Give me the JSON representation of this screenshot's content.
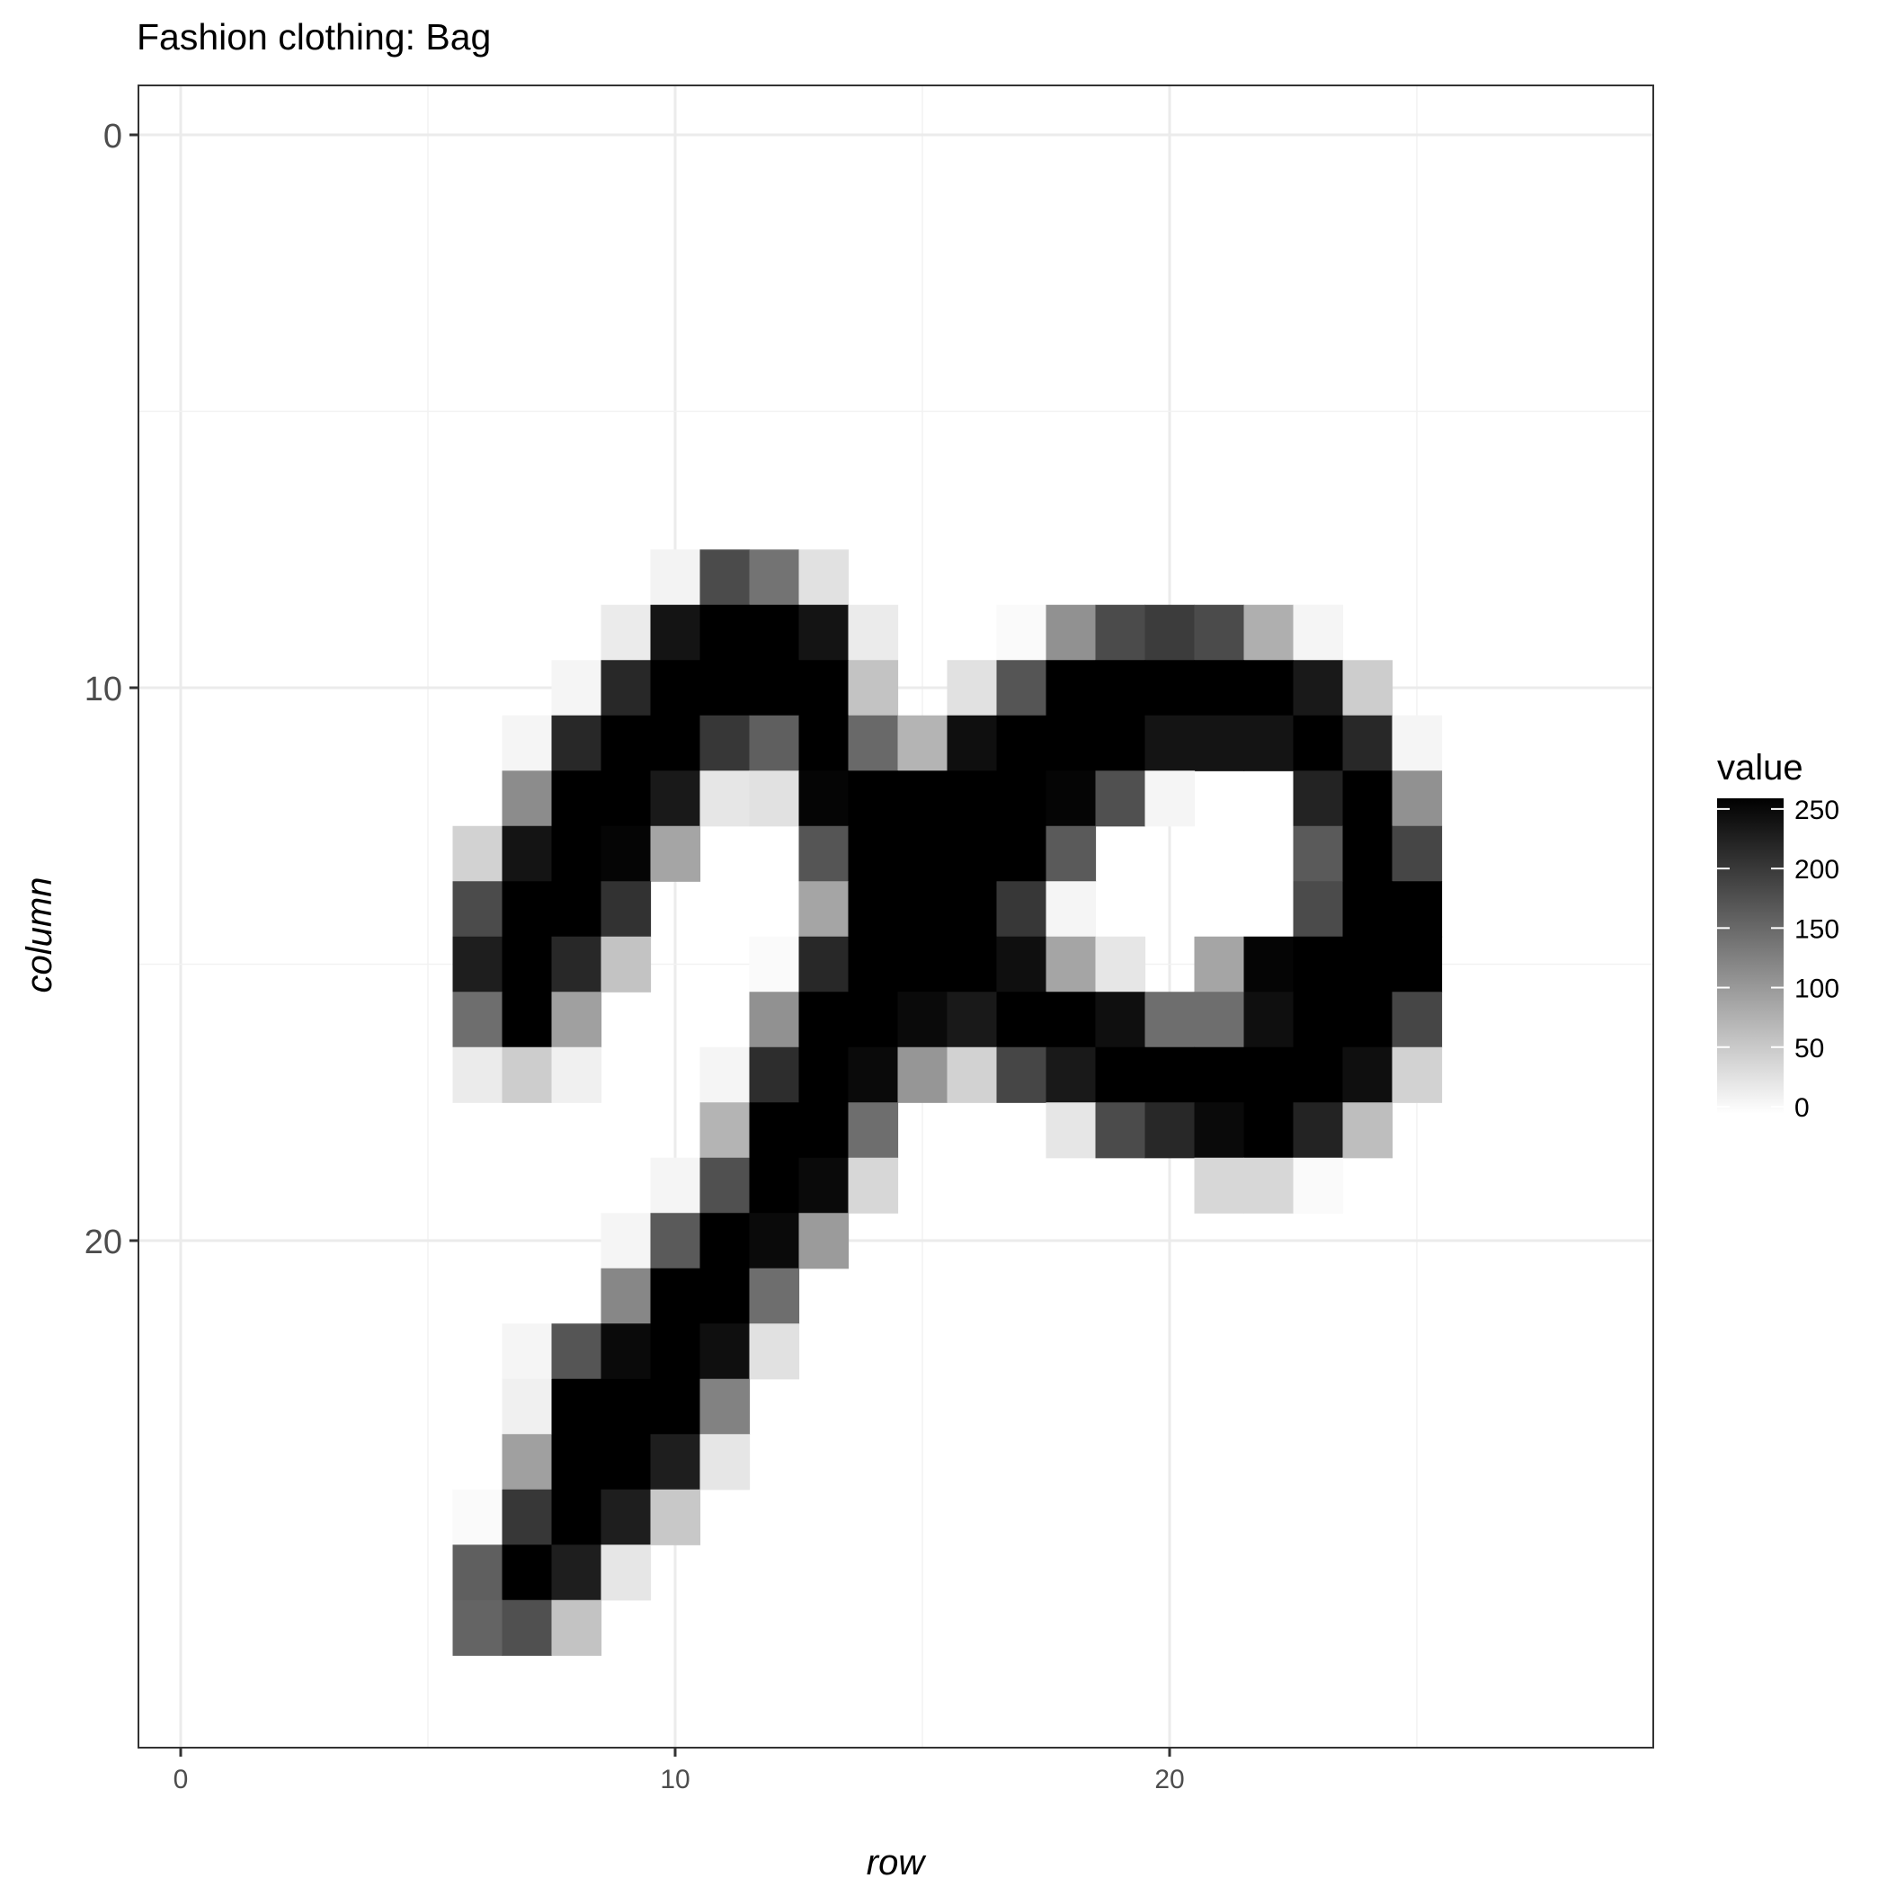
{
  "chart_data": {
    "type": "heatmap",
    "title": "Fashion clothing: Bag",
    "xlabel": "row",
    "ylabel": "column",
    "xlim": [
      -0.9,
      29.9
    ],
    "ylim": [
      0,
      30
    ],
    "x_ticks": [
      0,
      10,
      20
    ],
    "y_ticks": [
      0,
      10,
      20
    ],
    "y_reversed": true,
    "legend": {
      "title": "value",
      "min": 0,
      "max": 255,
      "ticks": [
        0,
        50,
        100,
        150,
        200,
        250
      ],
      "position": "right",
      "low_color": "#ffffff",
      "high_color": "#000000"
    },
    "grid": true,
    "cells": [
      [
        8,
        10,
        12
      ],
      [
        8,
        11,
        180
      ],
      [
        8,
        12,
        140
      ],
      [
        8,
        13,
        30
      ],
      [
        9,
        9,
        20
      ],
      [
        9,
        10,
        235
      ],
      [
        9,
        11,
        255
      ],
      [
        9,
        12,
        255
      ],
      [
        9,
        13,
        235
      ],
      [
        9,
        14,
        20
      ],
      [
        9,
        17,
        5
      ],
      [
        9,
        18,
        110
      ],
      [
        9,
        19,
        180
      ],
      [
        9,
        20,
        195
      ],
      [
        9,
        21,
        180
      ],
      [
        9,
        22,
        80
      ],
      [
        9,
        23,
        10
      ],
      [
        10,
        8,
        10
      ],
      [
        10,
        9,
        215
      ],
      [
        10,
        10,
        255
      ],
      [
        10,
        11,
        255
      ],
      [
        10,
        12,
        255
      ],
      [
        10,
        13,
        255
      ],
      [
        10,
        14,
        60
      ],
      [
        10,
        16,
        30
      ],
      [
        10,
        17,
        170
      ],
      [
        10,
        18,
        255
      ],
      [
        10,
        19,
        255
      ],
      [
        10,
        20,
        255
      ],
      [
        10,
        21,
        255
      ],
      [
        10,
        22,
        255
      ],
      [
        10,
        23,
        230
      ],
      [
        10,
        24,
        50
      ],
      [
        11,
        7,
        10
      ],
      [
        11,
        8,
        215
      ],
      [
        11,
        9,
        255
      ],
      [
        11,
        10,
        255
      ],
      [
        11,
        11,
        200
      ],
      [
        11,
        12,
        160
      ],
      [
        11,
        13,
        255
      ],
      [
        11,
        14,
        150
      ],
      [
        11,
        15,
        75
      ],
      [
        11,
        16,
        240
      ],
      [
        11,
        17,
        255
      ],
      [
        11,
        18,
        255
      ],
      [
        11,
        19,
        255
      ],
      [
        11,
        20,
        235
      ],
      [
        11,
        21,
        235
      ],
      [
        11,
        22,
        235
      ],
      [
        11,
        23,
        255
      ],
      [
        11,
        24,
        215
      ],
      [
        11,
        25,
        10
      ],
      [
        12,
        7,
        115
      ],
      [
        12,
        8,
        255
      ],
      [
        12,
        9,
        255
      ],
      [
        12,
        10,
        230
      ],
      [
        12,
        11,
        25
      ],
      [
        12,
        12,
        30
      ],
      [
        12,
        13,
        250
      ],
      [
        12,
        14,
        255
      ],
      [
        12,
        15,
        255
      ],
      [
        12,
        16,
        255
      ],
      [
        12,
        17,
        255
      ],
      [
        12,
        18,
        250
      ],
      [
        12,
        19,
        175
      ],
      [
        12,
        20,
        10
      ],
      [
        12,
        23,
        220
      ],
      [
        12,
        24,
        255
      ],
      [
        12,
        25,
        110
      ],
      [
        13,
        6,
        45
      ],
      [
        13,
        7,
        235
      ],
      [
        13,
        8,
        255
      ],
      [
        13,
        9,
        250
      ],
      [
        13,
        10,
        90
      ],
      [
        13,
        13,
        170
      ],
      [
        13,
        14,
        255
      ],
      [
        13,
        15,
        255
      ],
      [
        13,
        16,
        255
      ],
      [
        13,
        17,
        255
      ],
      [
        13,
        18,
        165
      ],
      [
        13,
        23,
        165
      ],
      [
        13,
        24,
        255
      ],
      [
        13,
        25,
        185
      ],
      [
        14,
        6,
        180
      ],
      [
        14,
        7,
        255
      ],
      [
        14,
        8,
        255
      ],
      [
        14,
        9,
        205
      ],
      [
        14,
        13,
        90
      ],
      [
        14,
        14,
        255
      ],
      [
        14,
        15,
        255
      ],
      [
        14,
        16,
        255
      ],
      [
        14,
        17,
        200
      ],
      [
        14,
        18,
        10
      ],
      [
        14,
        23,
        180
      ],
      [
        14,
        24,
        255
      ],
      [
        14,
        25,
        255
      ],
      [
        15,
        6,
        225
      ],
      [
        15,
        7,
        255
      ],
      [
        15,
        8,
        215
      ],
      [
        15,
        9,
        60
      ],
      [
        15,
        12,
        5
      ],
      [
        15,
        13,
        215
      ],
      [
        15,
        14,
        255
      ],
      [
        15,
        15,
        255
      ],
      [
        15,
        16,
        255
      ],
      [
        15,
        17,
        240
      ],
      [
        15,
        18,
        90
      ],
      [
        15,
        19,
        25
      ],
      [
        15,
        21,
        90
      ],
      [
        15,
        22,
        250
      ],
      [
        15,
        23,
        255
      ],
      [
        15,
        24,
        255
      ],
      [
        15,
        25,
        255
      ],
      [
        16,
        6,
        145
      ],
      [
        16,
        7,
        255
      ],
      [
        16,
        8,
        95
      ],
      [
        16,
        12,
        110
      ],
      [
        16,
        13,
        255
      ],
      [
        16,
        14,
        255
      ],
      [
        16,
        15,
        245
      ],
      [
        16,
        16,
        230
      ],
      [
        16,
        17,
        255
      ],
      [
        16,
        18,
        255
      ],
      [
        16,
        19,
        240
      ],
      [
        16,
        20,
        145
      ],
      [
        16,
        21,
        145
      ],
      [
        16,
        22,
        240
      ],
      [
        16,
        23,
        255
      ],
      [
        16,
        24,
        255
      ],
      [
        16,
        25,
        185
      ],
      [
        17,
        6,
        20
      ],
      [
        17,
        7,
        50
      ],
      [
        17,
        8,
        15
      ],
      [
        17,
        11,
        10
      ],
      [
        17,
        12,
        210
      ],
      [
        17,
        13,
        255
      ],
      [
        17,
        14,
        245
      ],
      [
        17,
        15,
        105
      ],
      [
        17,
        16,
        45
      ],
      [
        17,
        17,
        185
      ],
      [
        17,
        18,
        230
      ],
      [
        17,
        19,
        255
      ],
      [
        17,
        20,
        255
      ],
      [
        17,
        21,
        255
      ],
      [
        17,
        22,
        255
      ],
      [
        17,
        23,
        255
      ],
      [
        17,
        24,
        240
      ],
      [
        17,
        25,
        45
      ],
      [
        18,
        11,
        75
      ],
      [
        18,
        12,
        255
      ],
      [
        18,
        13,
        255
      ],
      [
        18,
        14,
        145
      ],
      [
        18,
        18,
        25
      ],
      [
        18,
        19,
        180
      ],
      [
        18,
        20,
        215
      ],
      [
        18,
        21,
        245
      ],
      [
        18,
        22,
        255
      ],
      [
        18,
        23,
        220
      ],
      [
        18,
        24,
        65
      ],
      [
        19,
        10,
        10
      ],
      [
        19,
        11,
        175
      ],
      [
        19,
        12,
        255
      ],
      [
        19,
        13,
        245
      ],
      [
        19,
        14,
        40
      ],
      [
        19,
        21,
        40
      ],
      [
        19,
        22,
        40
      ],
      [
        19,
        23,
        5
      ],
      [
        20,
        9,
        10
      ],
      [
        20,
        10,
        165
      ],
      [
        20,
        11,
        255
      ],
      [
        20,
        12,
        245
      ],
      [
        20,
        13,
        100
      ],
      [
        21,
        9,
        120
      ],
      [
        21,
        10,
        255
      ],
      [
        21,
        11,
        255
      ],
      [
        21,
        12,
        145
      ],
      [
        22,
        7,
        10
      ],
      [
        22,
        8,
        170
      ],
      [
        22,
        9,
        245
      ],
      [
        22,
        10,
        255
      ],
      [
        22,
        11,
        240
      ],
      [
        22,
        12,
        30
      ],
      [
        23,
        7,
        15
      ],
      [
        23,
        8,
        255
      ],
      [
        23,
        9,
        255
      ],
      [
        23,
        10,
        255
      ],
      [
        23,
        11,
        125
      ],
      [
        24,
        7,
        95
      ],
      [
        24,
        8,
        255
      ],
      [
        24,
        9,
        255
      ],
      [
        24,
        10,
        225
      ],
      [
        24,
        11,
        25
      ],
      [
        25,
        6,
        5
      ],
      [
        25,
        7,
        200
      ],
      [
        25,
        8,
        255
      ],
      [
        25,
        9,
        225
      ],
      [
        25,
        10,
        55
      ],
      [
        26,
        6,
        160
      ],
      [
        26,
        7,
        255
      ],
      [
        26,
        8,
        225
      ],
      [
        26,
        9,
        25
      ],
      [
        27,
        6,
        155
      ],
      [
        27,
        7,
        175
      ],
      [
        27,
        8,
        60
      ]
    ]
  }
}
